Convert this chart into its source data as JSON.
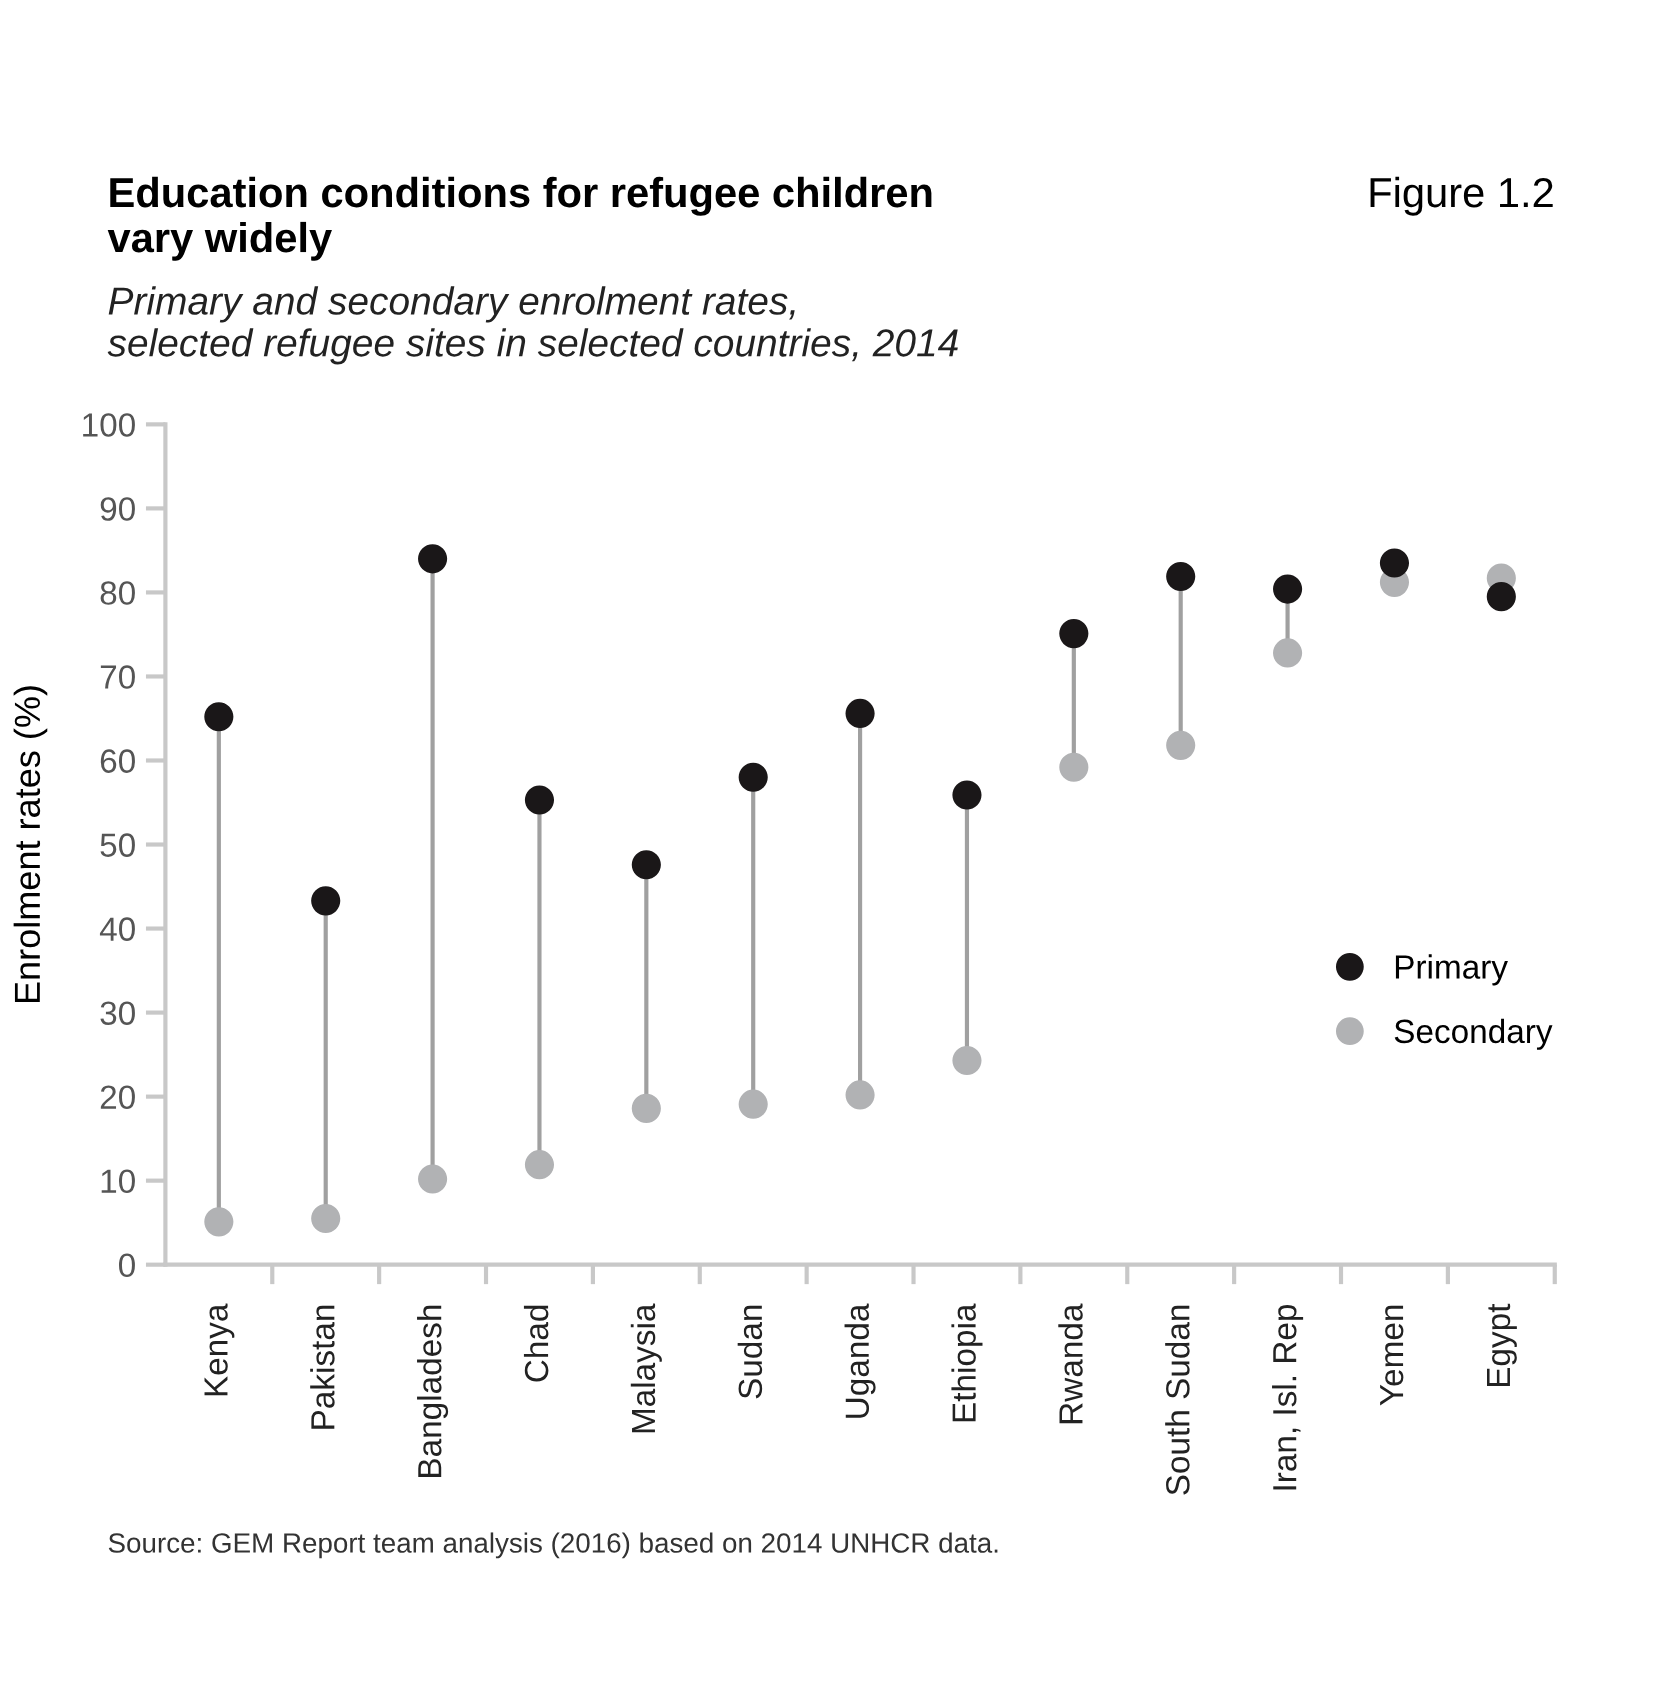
{
  "chart_data": {
    "type": "scatter",
    "title": "Education conditions for refugee children\nvary widely",
    "subtitle": "Primary and secondary enrolment rates,\nselected refugee sites in selected countries, 2014",
    "ylabel": "Enrolment rates (%)",
    "annotations": [
      "Figure 1.2",
      "Source: GEM Report team analysis (2016) based on 2014 UNHCR data."
    ],
    "categories": [
      "Kenya",
      "Pakistan",
      "Bangladesh",
      "Chad",
      "Malaysia",
      "Sudan",
      "Uganda",
      "Ethiopia",
      "Rwanda",
      "South Sudan",
      "Iran, Isl. Rep",
      "Yemen",
      "Egypt"
    ],
    "series": [
      {
        "name": "Primary",
        "color": "#1a1718",
        "values": [
          65.2,
          43.3,
          84.0,
          55.3,
          47.6,
          58.0,
          65.6,
          55.9,
          75.1,
          81.9,
          80.4,
          83.5,
          79.5
        ]
      },
      {
        "name": "Secondary",
        "color": "#b1b2b4",
        "values": [
          5.1,
          5.5,
          10.2,
          11.9,
          18.6,
          19.1,
          20.2,
          24.3,
          59.2,
          61.8,
          72.8,
          81.2,
          81.7
        ]
      }
    ],
    "ylim": [
      0,
      100
    ],
    "yticks": [
      0,
      10,
      20,
      30,
      40,
      50,
      60,
      70,
      80,
      90,
      100
    ],
    "marker": "circle",
    "legend": "right"
  }
}
